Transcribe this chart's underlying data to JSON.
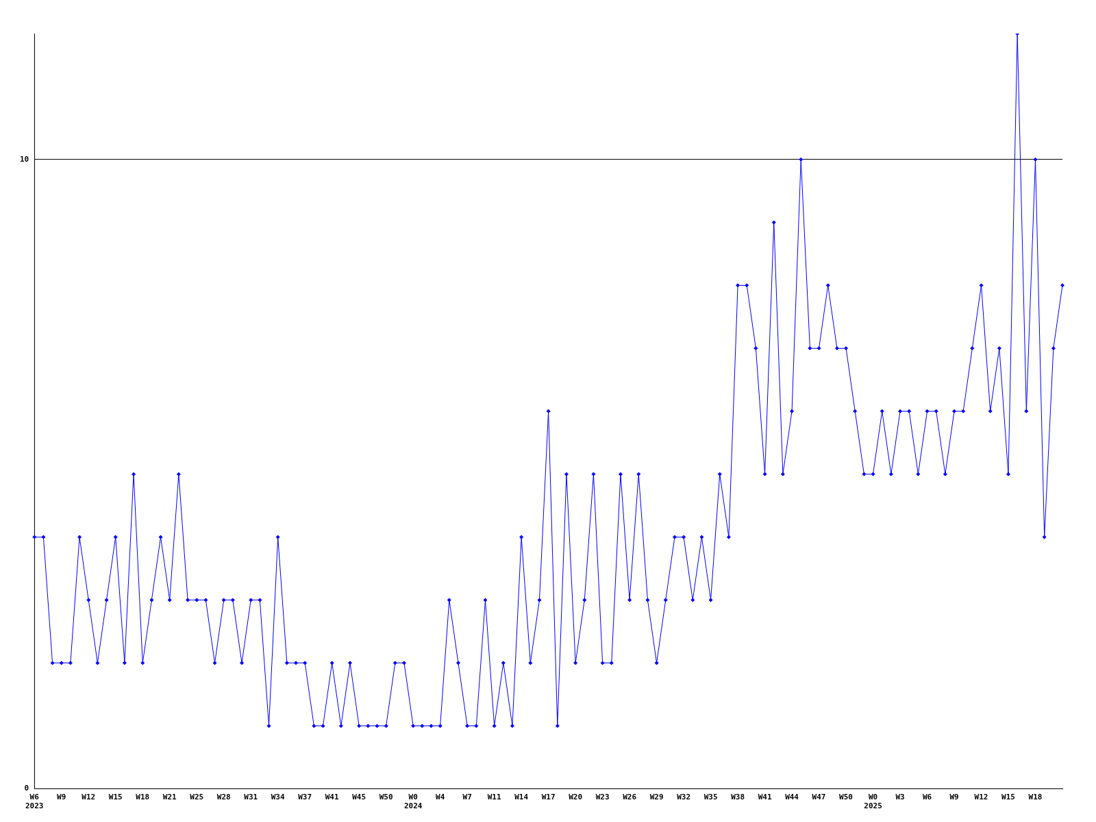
{
  "chart_data": {
    "type": "line",
    "categories": [
      "W6\n2023",
      null,
      null,
      "W9",
      null,
      null,
      "W12",
      null,
      null,
      "W15",
      null,
      null,
      "W18",
      null,
      null,
      "W21",
      null,
      null,
      "W25",
      null,
      null,
      "W28",
      null,
      null,
      "W31",
      null,
      null,
      "W34",
      null,
      null,
      "W37",
      null,
      null,
      "W41",
      null,
      null,
      "W45",
      null,
      null,
      "W50",
      null,
      null,
      "W0\n2024",
      null,
      null,
      "W4",
      null,
      null,
      "W7",
      null,
      null,
      "W11",
      null,
      null,
      "W14",
      null,
      null,
      "W17",
      null,
      null,
      "W20",
      null,
      null,
      "W23",
      null,
      null,
      "W26",
      null,
      null,
      "W29",
      null,
      null,
      "W32",
      null,
      null,
      "W35",
      null,
      null,
      "W38",
      null,
      null,
      "W41",
      null,
      null,
      "W44",
      null,
      null,
      "W47",
      null,
      null,
      "W50",
      null,
      null,
      "W0\n2025",
      null,
      null,
      "W3",
      null,
      null,
      "W6",
      null,
      null,
      "W9",
      null,
      null,
      "W12",
      null,
      null,
      "W15",
      null,
      null,
      "W18",
      null,
      null,
      null
    ],
    "series": [
      {
        "color": "#0000ff",
        "values": [
          4,
          4,
          2,
          2,
          2,
          4,
          3,
          2,
          3,
          4,
          2,
          5,
          2,
          3,
          4,
          3,
          5,
          3,
          3,
          3,
          2,
          3,
          3,
          2,
          3,
          3,
          1,
          4,
          2,
          2,
          2,
          1,
          1,
          2,
          1,
          2,
          1,
          1,
          1,
          1,
          2,
          2,
          1,
          1,
          1,
          1,
          3,
          2,
          1,
          1,
          3,
          1,
          2,
          1,
          4,
          2,
          3,
          6,
          1,
          5,
          2,
          3,
          5,
          2,
          2,
          5,
          3,
          5,
          3,
          2,
          3,
          4,
          4,
          3,
          4,
          3,
          5,
          4,
          8,
          8,
          7,
          5,
          9,
          5,
          6,
          10,
          7,
          7,
          8,
          7,
          7,
          6,
          5,
          5,
          6,
          5,
          6,
          6,
          5,
          6,
          6,
          5,
          6,
          6,
          7,
          8,
          6,
          7,
          5,
          12,
          6,
          10,
          4,
          7,
          8
        ]
      }
    ],
    "ylim": [
      0,
      12
    ],
    "yticks": [
      0,
      10
    ],
    "grid": "y",
    "marker": "diamond",
    "line_style": "solid",
    "legend": false
  }
}
